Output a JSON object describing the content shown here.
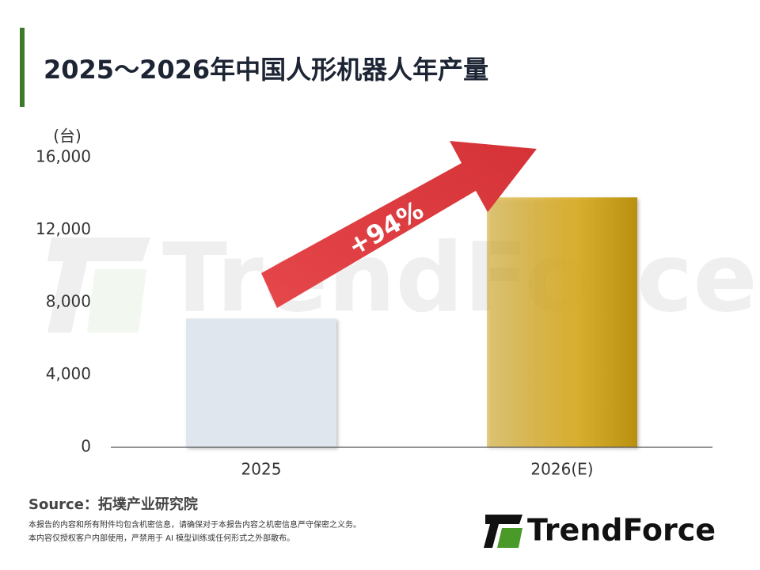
{
  "chart_data": {
    "type": "bar",
    "title": "2025～2026年中国人形机器人年产量",
    "y_axis_unit": "(台)",
    "categories": [
      "2025",
      "2026(E)"
    ],
    "values": [
      7100,
      13800
    ],
    "colors": [
      "#dfe6ee",
      "#d9ab1e"
    ],
    "ylim": [
      0,
      16000
    ],
    "yticks": [
      0,
      {
        "value": 4000,
        "label": "4,000"
      },
      {
        "value": 8000,
        "label": "8,000"
      },
      {
        "value": 12000,
        "label": "12,000"
      },
      {
        "value": 16000,
        "label": "16,000"
      }
    ],
    "annotation": "+94%",
    "watermark": "TrendForce",
    "source": "Source：拓墣产业研究院",
    "notes": [
      "本报告的内容和所有附件均包含机密信息，请确保对于本报告内容之机密信息严守保密之义务。",
      "本内容仅授权客户内部使用，严禁用于 AI 模型训练或任何形式之外部散布。"
    ],
    "logo": "TrendForce"
  }
}
